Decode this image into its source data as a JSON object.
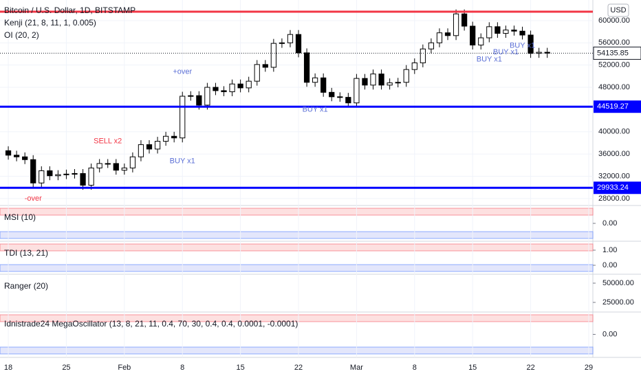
{
  "chart_data": {
    "type": "candlestick",
    "title": "Bitcoin / U.S. Dollar, 1D, BITSTAMP",
    "indicators": [
      "Kenji (21, 8, 11, 1, 0.005)",
      "OI (20, 2)"
    ],
    "currency": "USD",
    "x": [
      0,
      1,
      2,
      3,
      4,
      5,
      6,
      7,
      8,
      9,
      10,
      11,
      12,
      13,
      14,
      15,
      16,
      17,
      18,
      19,
      20,
      21,
      22,
      23,
      24,
      25,
      26,
      27,
      28,
      29,
      30,
      31,
      32,
      33,
      34,
      35,
      36,
      37,
      38,
      39,
      40,
      41,
      42,
      43,
      44,
      45,
      46,
      47,
      48,
      49,
      50,
      51,
      52,
      53,
      54,
      55,
      56,
      57,
      58,
      59,
      60,
      61,
      62,
      63,
      64,
      65
    ],
    "open": [
      36600,
      35800,
      35500,
      35000,
      30800,
      33000,
      32100,
      32300,
      32400,
      32500,
      30400,
      33500,
      34300,
      34300,
      33100,
      33500,
      35500,
      37700,
      36900,
      38300,
      39200,
      38900,
      46400,
      46500,
      44800,
      48000,
      47400,
      47200,
      48600,
      47900,
      49100,
      52100,
      51600,
      55900,
      56000,
      57500,
      54200,
      48900,
      49700,
      47100,
      46300,
      46200,
      45200,
      49600,
      48400,
      50400,
      48400,
      48800,
      48900,
      51200,
      52400,
      54900,
      56000,
      57800,
      57300,
      61200,
      59000,
      55600,
      56900,
      58900,
      57700,
      58300,
      58100,
      57400,
      54100,
      54300
    ],
    "high": [
      37400,
      36600,
      36300,
      35800,
      33800,
      33800,
      33100,
      33200,
      33300,
      33300,
      34300,
      35100,
      35100,
      35100,
      34300,
      36300,
      38500,
      38500,
      39100,
      40000,
      40000,
      47200,
      47300,
      47300,
      48800,
      48800,
      48200,
      49400,
      49400,
      49900,
      52900,
      52900,
      56700,
      56800,
      58300,
      58300,
      55000,
      50500,
      50500,
      47900,
      47100,
      47000,
      50400,
      50400,
      51200,
      51200,
      49600,
      49700,
      52000,
      53200,
      55700,
      56800,
      58600,
      58600,
      62000,
      62000,
      59800,
      57700,
      59700,
      59700,
      59100,
      59100,
      58900,
      58200,
      55100,
      55100
    ],
    "low": [
      35000,
      34700,
      34200,
      30000,
      30000,
      31300,
      31300,
      31500,
      31600,
      29600,
      29600,
      32700,
      33500,
      32300,
      32300,
      32700,
      34700,
      36100,
      36100,
      37500,
      38100,
      38100,
      45600,
      44000,
      44000,
      46600,
      46400,
      46400,
      47100,
      47100,
      48300,
      50800,
      50800,
      55100,
      55200,
      53400,
      48100,
      48100,
      46300,
      45500,
      45400,
      44400,
      44400,
      47600,
      47600,
      47600,
      47600,
      48000,
      48100,
      50400,
      51600,
      54100,
      55200,
      56500,
      56500,
      58200,
      54800,
      54800,
      56100,
      56900,
      56900,
      57300,
      56600,
      53300,
      53300,
      53300
    ],
    "close": [
      35800,
      35500,
      35000,
      30800,
      33000,
      32100,
      32300,
      32400,
      32500,
      30400,
      33500,
      34300,
      34300,
      33100,
      33500,
      35500,
      37700,
      36900,
      38300,
      39200,
      38900,
      46400,
      46500,
      44800,
      48000,
      47400,
      47200,
      48600,
      47900,
      49100,
      52100,
      51600,
      55900,
      56000,
      57500,
      54200,
      48900,
      49700,
      47100,
      46300,
      46200,
      45200,
      49600,
      48400,
      50400,
      48400,
      48800,
      48900,
      51200,
      52400,
      54900,
      56000,
      57800,
      57300,
      61200,
      59000,
      55600,
      56900,
      58900,
      57700,
      58300,
      58100,
      57400,
      54100,
      54300,
      54135.85
    ],
    "xlim": [
      -1,
      70.5
    ],
    "xticks": [
      {
        "value": 0,
        "label": "18"
      },
      {
        "value": 7,
        "label": "25"
      },
      {
        "value": 14,
        "label": "Feb"
      },
      {
        "value": 21,
        "label": "8"
      },
      {
        "value": 28,
        "label": "15"
      },
      {
        "value": 35,
        "label": "22"
      },
      {
        "value": 42,
        "label": "Mar"
      },
      {
        "value": 49,
        "label": "8"
      },
      {
        "value": 56,
        "label": "15"
      },
      {
        "value": 63,
        "label": "22"
      },
      {
        "value": 70,
        "label": "29"
      }
    ],
    "ylim": [
      27000,
      63700
    ],
    "yticks": [
      {
        "value": 60000,
        "label": "60000.00"
      },
      {
        "value": 56000,
        "label": "56000.00"
      },
      {
        "value": 52000,
        "label": "52000.00"
      },
      {
        "value": 48000,
        "label": "48000.00"
      },
      {
        "value": 40000,
        "label": "40000.00"
      },
      {
        "value": 36000,
        "label": "36000.00"
      },
      {
        "value": 32000,
        "label": "32000.00"
      },
      {
        "value": 28000,
        "label": "28000.00"
      }
    ],
    "last_price": 54135.85,
    "levels": [
      {
        "value": 61600,
        "color": "#f23645"
      },
      {
        "value": 44519.27,
        "label": "44519.27",
        "color": "#0000ff"
      },
      {
        "value": 29933.24,
        "label": "29933.24",
        "color": "#0000ff"
      }
    ],
    "annotations": [
      {
        "text": "SELL x2",
        "x": 12,
        "y": 38300,
        "color": "#f23645"
      },
      {
        "text": "BUY x1",
        "x": 21,
        "y": 34700,
        "color": "#5b6fd6"
      },
      {
        "text": "+over",
        "x": 21,
        "y": 50800,
        "color": "#5b6fd6"
      },
      {
        "text": "-over",
        "x": 3,
        "y": 28000,
        "color": "#f23645"
      },
      {
        "text": "BUY x1",
        "x": 37,
        "y": 44000,
        "color": "#5b6fd6"
      },
      {
        "text": "BUY x1",
        "x": 58,
        "y": 53000,
        "color": "#5b6fd6"
      },
      {
        "text": "BUY x1",
        "x": 60,
        "y": 54300,
        "color": "#5b6fd6"
      },
      {
        "text": "BUY x1",
        "x": 62,
        "y": 55500,
        "color": "#5b6fd6"
      }
    ],
    "panes": [
      {
        "title": "MSI (10)",
        "yticks": [
          {
            "value": 0,
            "label": "0.00"
          }
        ]
      },
      {
        "title": "TDI (13, 21)",
        "yticks": [
          {
            "value": 1,
            "label": "1.00"
          },
          {
            "value": 0,
            "label": "0.00"
          }
        ]
      },
      {
        "title": "Ranger (20)",
        "yticks": [
          {
            "value": 50000,
            "label": "50000.00"
          },
          {
            "value": 25000,
            "label": "25000.00"
          }
        ]
      },
      {
        "title": "Idnistrade24 MegaOscillator (13, 8, 21, 11, 0.4, 70, 30, 0.4, 0.4, 0.0001, -0.0001)",
        "yticks": [
          {
            "value": 0,
            "label": "0.00"
          }
        ]
      }
    ]
  }
}
